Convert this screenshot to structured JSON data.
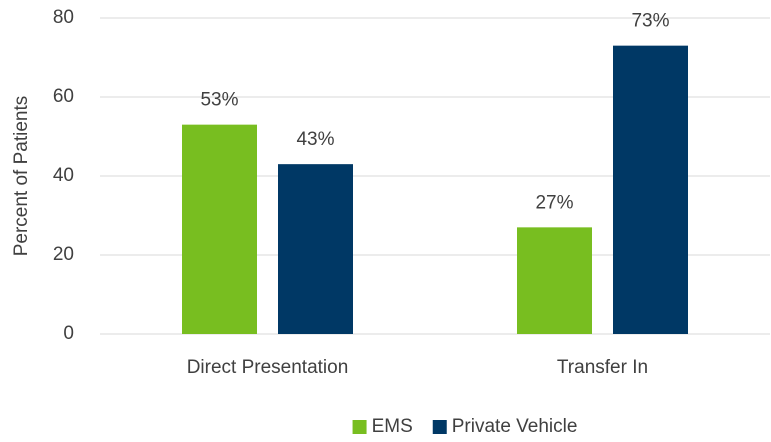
{
  "chart_data": {
    "type": "bar",
    "y_label": "Percent of Patients",
    "categories": [
      "Direct Presentation",
      "Transfer In"
    ],
    "series": [
      {
        "name": "EMS",
        "color": "#78be20",
        "values": [
          53,
          27
        ],
        "value_labels": [
          "53%",
          "27%"
        ]
      },
      {
        "name": "Private Vehicle",
        "color": "#003865",
        "values": [
          43,
          73
        ],
        "value_labels": [
          "43%",
          "73%"
        ]
      }
    ],
    "ylim": [
      0,
      80
    ],
    "yticks": [
      0,
      20,
      40,
      60,
      80
    ],
    "grid": true,
    "legend": "bottom"
  }
}
